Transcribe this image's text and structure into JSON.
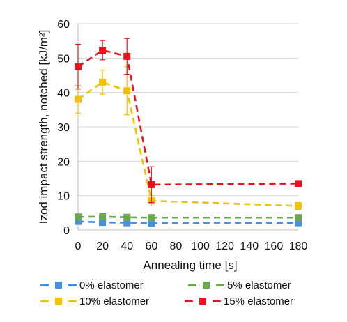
{
  "chart_data": {
    "type": "line",
    "xlabel": "Annealing time [s]",
    "ylabel": "Izod impact strength, notched [kJ/m²]",
    "xlim": [
      0,
      180
    ],
    "ylim": [
      0,
      60
    ],
    "x_ticks": [
      "0",
      "20",
      "40",
      "60",
      "80",
      "100",
      "120",
      "140",
      "160",
      "180"
    ],
    "y_ticks": [
      "0",
      "10",
      "20",
      "30",
      "40",
      "50",
      "60"
    ],
    "grid": "horizontal",
    "legend_position": "bottom",
    "series": [
      {
        "name": "0% elastomer",
        "color": "#4a90d9",
        "x": [
          0,
          20,
          40,
          60,
          180
        ],
        "values": [
          2.5,
          2.2,
          2.1,
          2.0,
          2.1
        ],
        "errors": [
          0.3,
          0.3,
          0.3,
          0.3,
          0.3
        ]
      },
      {
        "name": "5% elastomer",
        "color": "#6aa84f",
        "x": [
          0,
          20,
          40,
          60,
          180
        ],
        "values": [
          3.8,
          3.9,
          3.7,
          3.6,
          3.6
        ],
        "errors": [
          0.4,
          0.4,
          0.4,
          0.3,
          0.3
        ]
      },
      {
        "name": "10% elastomer",
        "color": "#f5c000",
        "x": [
          0,
          20,
          40,
          60,
          180
        ],
        "values": [
          38,
          43,
          40.5,
          8.5,
          7.0
        ],
        "errors": [
          4,
          3.5,
          7,
          1.5,
          1.0
        ]
      },
      {
        "name": "15% elastomer",
        "color": "#e8141b",
        "x": [
          0,
          20,
          40,
          60,
          180
        ],
        "values": [
          47.5,
          52.3,
          50.5,
          13.2,
          13.5
        ],
        "errors": [
          6.5,
          2.8,
          5.2,
          5.2,
          0.5
        ]
      }
    ]
  }
}
